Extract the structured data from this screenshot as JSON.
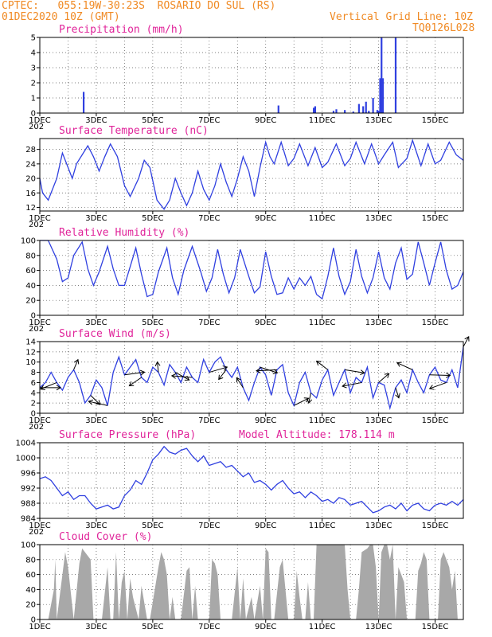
{
  "header": {
    "line1": "CPTEC:   055:19W-30:23S  ROSARIO DO SUL (RS)",
    "line2": "01DEC2020 10Z (GMT)",
    "grid_note": "Vertical Grid Line: 10Z",
    "run_id": "TQ0126L028"
  },
  "colors": {
    "series": "#3040e0",
    "cloud": "#a8a8a8",
    "title": "#e0249a",
    "header": "#f08a24",
    "arrow": "#000000"
  },
  "x_axis": {
    "labels": [
      "1DEC",
      "3DEC",
      "5DEC",
      "7DEC",
      "9DEC",
      "11DEC",
      "13DEC",
      "15DEC"
    ],
    "label_days": [
      1,
      3,
      5,
      7,
      9,
      11,
      13,
      15
    ],
    "year_mark": "202",
    "range_days": [
      1,
      16
    ],
    "vertical_grid_hour": "10Z"
  },
  "chart_data": [
    {
      "id": "precip",
      "type": "bar",
      "title": "Precipitation (mm/h)",
      "ylim": [
        0,
        5
      ],
      "yticks": [
        "0",
        "1",
        "2",
        "3",
        "4",
        "5"
      ],
      "x": [
        2.55,
        9.45,
        10.7,
        10.75,
        11.4,
        11.5,
        11.8,
        12.1,
        12.3,
        12.45,
        12.55,
        12.65,
        12.8,
        12.95,
        13.0,
        13.05,
        13.1,
        13.15,
        13.6
      ],
      "values": [
        1.4,
        0.5,
        0.35,
        0.45,
        0.15,
        0.25,
        0.2,
        0.1,
        0.6,
        0.45,
        0.75,
        0.15,
        1.0,
        0.2,
        0.15,
        2.3,
        5.0,
        2.3,
        5.0
      ]
    },
    {
      "id": "temp",
      "type": "line",
      "title": "Surface Temperature (nC)",
      "ylim": [
        11,
        31
      ],
      "yticks": [
        "12",
        "16",
        "20",
        "24",
        "28"
      ],
      "x": [
        1.0,
        1.1,
        1.3,
        1.6,
        1.8,
        2.0,
        2.15,
        2.3,
        2.7,
        2.9,
        3.1,
        3.3,
        3.5,
        3.75,
        4.0,
        4.2,
        4.5,
        4.7,
        4.9,
        5.15,
        5.4,
        5.6,
        5.8,
        6.0,
        6.2,
        6.4,
        6.6,
        6.8,
        7.0,
        7.2,
        7.4,
        7.6,
        7.8,
        8.0,
        8.2,
        8.4,
        8.6,
        8.8,
        9.0,
        9.15,
        9.3,
        9.55,
        9.8,
        10.0,
        10.2,
        10.5,
        10.75,
        11.0,
        11.2,
        11.5,
        11.8,
        12.0,
        12.2,
        12.5,
        12.75,
        13.0,
        13.2,
        13.5,
        13.7,
        14.0,
        14.2,
        14.5,
        14.75,
        15.0,
        15.2,
        15.5,
        15.75,
        16.0
      ],
      "values": [
        20,
        16,
        14,
        20,
        27,
        23,
        20,
        24,
        29,
        26,
        22,
        26,
        29.5,
        26,
        18,
        15,
        20,
        25,
        23,
        14,
        11.5,
        14,
        20,
        16,
        12.5,
        16,
        22,
        17,
        14,
        18,
        24,
        19,
        15,
        20,
        26,
        22,
        15,
        23,
        30,
        26,
        24,
        30,
        23.5,
        25.5,
        29.5,
        23.5,
        28.5,
        23,
        24.5,
        29.5,
        23.5,
        25.5,
        30,
        24,
        29.5,
        24,
        26.5,
        30,
        23,
        25.5,
        30.5,
        23.5,
        29.5,
        24,
        25,
        30,
        26.5,
        25
      ]
    },
    {
      "id": "rh",
      "type": "line",
      "title": "Relative Humidity (%)",
      "ylim": [
        0,
        100
      ],
      "yticks": [
        "0",
        "20",
        "40",
        "60",
        "80",
        "100"
      ],
      "x": [
        1.0,
        1.1,
        1.3,
        1.6,
        1.8,
        2.0,
        2.2,
        2.5,
        2.7,
        2.9,
        3.1,
        3.4,
        3.6,
        3.8,
        4.0,
        4.2,
        4.4,
        4.6,
        4.8,
        5.0,
        5.2,
        5.5,
        5.7,
        5.9,
        6.1,
        6.4,
        6.7,
        6.9,
        7.1,
        7.3,
        7.5,
        7.7,
        7.9,
        8.1,
        8.4,
        8.6,
        8.8,
        9.0,
        9.2,
        9.4,
        9.6,
        9.8,
        10.0,
        10.2,
        10.4,
        10.6,
        10.8,
        11.0,
        11.2,
        11.4,
        11.6,
        11.8,
        12.0,
        12.2,
        12.4,
        12.6,
        12.8,
        13.0,
        13.2,
        13.4,
        13.6,
        13.8,
        14.0,
        14.2,
        14.4,
        14.6,
        14.8,
        15.0,
        15.2,
        15.4,
        15.6,
        15.8,
        16.0
      ],
      "values": [
        100,
        100,
        100,
        75,
        45,
        50,
        80,
        98,
        62,
        40,
        58,
        92,
        62,
        40,
        40,
        65,
        90,
        55,
        25,
        28,
        58,
        90,
        50,
        28,
        60,
        92,
        58,
        32,
        50,
        88,
        55,
        30,
        50,
        88,
        52,
        30,
        38,
        85,
        52,
        28,
        30,
        50,
        35,
        50,
        40,
        52,
        28,
        22,
        52,
        90,
        52,
        28,
        45,
        88,
        52,
        30,
        50,
        85,
        50,
        35,
        70,
        90,
        48,
        55,
        98,
        70,
        40,
        70,
        98,
        60,
        35,
        40,
        58
      ]
    },
    {
      "id": "wind",
      "type": "line",
      "title": "Surface Wind (m/s)",
      "ylim": [
        0,
        14
      ],
      "yticks": [
        "0",
        "2",
        "4",
        "6",
        "8",
        "10",
        "12",
        "14"
      ],
      "x": [
        1.0,
        1.2,
        1.4,
        1.6,
        1.8,
        2.0,
        2.2,
        2.4,
        2.6,
        2.8,
        3.0,
        3.2,
        3.4,
        3.6,
        3.8,
        4.0,
        4.2,
        4.4,
        4.6,
        4.8,
        5.0,
        5.2,
        5.4,
        5.6,
        5.8,
        6.0,
        6.2,
        6.4,
        6.6,
        6.8,
        7.0,
        7.2,
        7.4,
        7.6,
        7.8,
        8.0,
        8.2,
        8.4,
        8.6,
        8.8,
        9.0,
        9.2,
        9.4,
        9.6,
        9.8,
        10.0,
        10.2,
        10.4,
        10.6,
        10.8,
        11.0,
        11.2,
        11.4,
        11.6,
        11.8,
        12.0,
        12.2,
        12.4,
        12.6,
        12.8,
        13.0,
        13.2,
        13.4,
        13.6,
        13.8,
        14.0,
        14.2,
        14.4,
        14.6,
        14.8,
        15.0,
        15.2,
        15.4,
        15.6,
        15.8,
        16.0
      ],
      "values": [
        5,
        6,
        8,
        6,
        4.5,
        7,
        8.5,
        6,
        2,
        3.5,
        6.5,
        5,
        1.5,
        8,
        11,
        7.5,
        9,
        10.5,
        7,
        6,
        9,
        8,
        5.5,
        9.5,
        8,
        6,
        9,
        7,
        6,
        10.5,
        8,
        10,
        11,
        8.5,
        7,
        9,
        5,
        2.5,
        6,
        9,
        7.5,
        3.5,
        8.5,
        9.5,
        4,
        1.5,
        6,
        8,
        4,
        3,
        6.5,
        8.5,
        3.5,
        6,
        8.5,
        4,
        7,
        6,
        9,
        3,
        6,
        5.5,
        1,
        5,
        6.5,
        4,
        8.5,
        6,
        4,
        7.5,
        9,
        6.5,
        6,
        8.5,
        5,
        13
      ]
    },
    {
      "id": "pressure",
      "type": "line",
      "title": "Surface Pressure (hPa)",
      "annotation": "Model Altitude: 178.114 m",
      "ylim": [
        984,
        1004
      ],
      "yticks": [
        "984",
        "988",
        "992",
        "996",
        "1000",
        "1004"
      ],
      "x": [
        1.0,
        1.2,
        1.4,
        1.6,
        1.8,
        2.0,
        2.2,
        2.4,
        2.6,
        2.8,
        3.0,
        3.2,
        3.4,
        3.6,
        3.8,
        4.0,
        4.2,
        4.4,
        4.6,
        4.8,
        5.0,
        5.2,
        5.4,
        5.6,
        5.8,
        6.0,
        6.2,
        6.4,
        6.6,
        6.8,
        7.0,
        7.2,
        7.4,
        7.6,
        7.8,
        8.0,
        8.2,
        8.4,
        8.6,
        8.8,
        9.0,
        9.2,
        9.4,
        9.6,
        9.8,
        10.0,
        10.2,
        10.4,
        10.6,
        10.8,
        11.0,
        11.2,
        11.4,
        11.6,
        11.8,
        12.0,
        12.2,
        12.4,
        12.6,
        12.8,
        13.0,
        13.2,
        13.4,
        13.6,
        13.8,
        14.0,
        14.2,
        14.4,
        14.6,
        14.8,
        15.0,
        15.2,
        15.4,
        15.6,
        15.8,
        16.0
      ],
      "values": [
        994.5,
        995,
        994,
        992,
        990,
        991,
        989,
        990,
        990,
        988,
        986.5,
        987,
        987.5,
        986.5,
        987,
        990,
        991.5,
        994,
        993,
        996,
        999.5,
        1001,
        1003,
        1001.5,
        1001,
        1002,
        1002.5,
        1000.5,
        999,
        1000.5,
        998,
        998.5,
        999,
        997.5,
        998,
        996.5,
        995,
        996,
        993.5,
        994,
        993,
        991.5,
        993,
        994,
        992,
        990.5,
        991,
        989.5,
        991,
        990,
        988.5,
        989,
        988,
        989.5,
        989,
        987.5,
        988,
        988.5,
        987,
        985.5,
        986,
        987,
        987.5,
        986.5,
        988,
        986,
        987.5,
        988,
        986.5,
        986,
        987.5,
        988,
        987.5,
        988.5,
        987.5,
        989
      ]
    },
    {
      "id": "cloud",
      "type": "area",
      "title": "Cloud Cover (%)",
      "ylim": [
        0,
        100
      ],
      "yticks": [
        "0",
        "20",
        "40",
        "60",
        "80",
        "100"
      ],
      "x": [
        1.0,
        1.3,
        1.5,
        1.55,
        1.6,
        1.8,
        1.9,
        2.0,
        2.2,
        2.4,
        2.5,
        2.6,
        2.7,
        2.8,
        2.9,
        3.0,
        3.2,
        3.4,
        3.5,
        3.6,
        3.7,
        3.8,
        3.9,
        4.0,
        4.1,
        4.2,
        4.3,
        4.5,
        4.6,
        4.8,
        4.9,
        5.2,
        5.3,
        5.4,
        5.5,
        5.6,
        5.7,
        5.8,
        6.0,
        6.2,
        6.3,
        6.4,
        6.5,
        6.6,
        6.8,
        7.0,
        7.1,
        7.2,
        7.3,
        7.4,
        7.5,
        7.8,
        8.0,
        8.1,
        8.2,
        8.3,
        8.5,
        8.6,
        8.8,
        8.9,
        9.0,
        9.1,
        9.2,
        9.3,
        9.5,
        9.6,
        9.8,
        10.0,
        10.1,
        10.2,
        10.3,
        10.4,
        10.5,
        10.6,
        10.7,
        10.8,
        10.9,
        11.0,
        11.1,
        11.2,
        11.3,
        11.4,
        11.5,
        11.6,
        11.7,
        11.8,
        11.9,
        12.0,
        12.1,
        12.2,
        12.3,
        12.4,
        12.6,
        12.7,
        12.8,
        12.9,
        13.0,
        13.1,
        13.2,
        13.3,
        13.4,
        13.5,
        13.6,
        13.7,
        13.8,
        13.9,
        14.0,
        14.3,
        14.4,
        14.5,
        14.6,
        14.7,
        14.8,
        14.9,
        15.0,
        15.1,
        15.2,
        15.3,
        15.5,
        15.6,
        15.7,
        15.8,
        16.0
      ],
      "values": [
        0,
        0,
        40,
        80,
        0,
        60,
        90,
        70,
        0,
        75,
        95,
        90,
        85,
        80,
        0,
        0,
        0,
        70,
        0,
        0,
        90,
        0,
        50,
        65,
        0,
        55,
        30,
        0,
        45,
        0,
        0,
        70,
        90,
        80,
        60,
        0,
        30,
        0,
        0,
        65,
        70,
        0,
        45,
        0,
        0,
        0,
        80,
        75,
        60,
        0,
        0,
        0,
        70,
        0,
        55,
        0,
        30,
        0,
        45,
        0,
        95,
        90,
        0,
        0,
        70,
        80,
        0,
        0,
        65,
        30,
        0,
        0,
        50,
        0,
        0,
        100,
        100,
        100,
        100,
        100,
        100,
        100,
        100,
        100,
        100,
        100,
        40,
        0,
        0,
        0,
        40,
        90,
        95,
        100,
        100,
        70,
        0,
        90,
        100,
        100,
        80,
        100,
        0,
        70,
        60,
        50,
        0,
        0,
        65,
        75,
        90,
        80,
        0,
        0,
        0,
        0,
        80,
        90,
        70,
        40,
        65,
        0,
        0
      ]
    }
  ]
}
